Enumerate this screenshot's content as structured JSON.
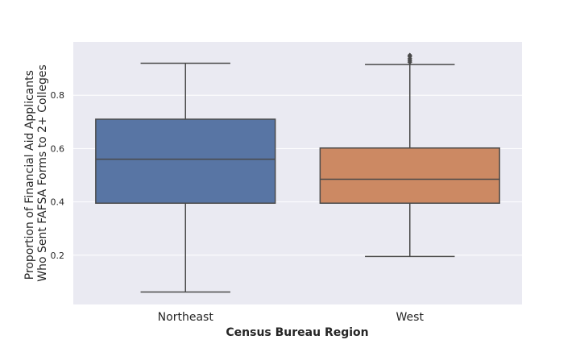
{
  "chart_data": {
    "type": "box",
    "title": "",
    "xlabel": "Census Bureau Region",
    "ylabel_lines": [
      "Proportion of Financial Aid Applicants",
      "Who Sent FAFSA Forms to 2+ Colleges"
    ],
    "categories": [
      "Northeast",
      "West"
    ],
    "ylim": [
      0.015,
      1.0
    ],
    "yticks": [
      0.2,
      0.4,
      0.6,
      0.8
    ],
    "ytick_labels": [
      "0.2",
      "0.4",
      "0.6",
      "0.8"
    ],
    "grid": true,
    "background_color": "#eaeaf2",
    "edge_color": "#4a4a4a",
    "series": [
      {
        "category": "Northeast",
        "color": "#5875a4",
        "whisker_low": 0.062,
        "q1": 0.395,
        "median": 0.56,
        "q3": 0.71,
        "whisker_high": 0.92,
        "outliers": []
      },
      {
        "category": "West",
        "color": "#cc8963",
        "whisker_low": 0.195,
        "q1": 0.395,
        "median": 0.485,
        "q3": 0.602,
        "whisker_high": 0.915,
        "outliers": [
          0.924,
          0.93,
          0.937,
          0.945,
          0.95
        ]
      }
    ]
  }
}
